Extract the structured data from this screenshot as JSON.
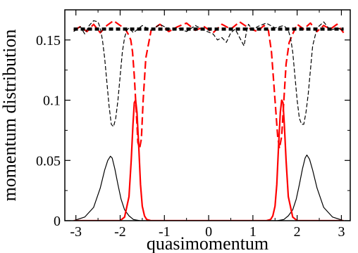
{
  "chart_data": {
    "type": "line",
    "title": "",
    "xlabel": "quasimomentum",
    "ylabel": "momentum distribution",
    "xlim": [
      -3.25,
      3.2
    ],
    "ylim": [
      0,
      0.175
    ],
    "xticks": [
      -3,
      -2,
      -1,
      0,
      1,
      2,
      3
    ],
    "xtick_labels": [
      "-3",
      "-2",
      "-1",
      "0",
      "1",
      "2",
      "3"
    ],
    "yticks": [
      0,
      0.05,
      0.1,
      0.15
    ],
    "ytick_labels": [
      "0",
      "0.05",
      "0.1",
      "0.15"
    ],
    "grid": false,
    "legend": "none",
    "series": [
      {
        "style": "solid",
        "color": "#000000",
        "width": 1.2,
        "x": [
          -3.05,
          -2.8,
          -2.6,
          -2.45,
          -2.35,
          -2.28,
          -2.22,
          -2.18,
          -2.12,
          -2.05,
          -1.98,
          -1.9,
          -1.8,
          -1.7,
          -1.55,
          1.55,
          1.7,
          1.8,
          1.9,
          1.98,
          2.05,
          2.12,
          2.18,
          2.22,
          2.28,
          2.35,
          2.45,
          2.6,
          2.8,
          3.05
        ],
        "y": [
          0.0,
          0.003,
          0.011,
          0.027,
          0.042,
          0.05,
          0.0535,
          0.052,
          0.043,
          0.03,
          0.018,
          0.009,
          0.004,
          0.001,
          0.0,
          0.0,
          0.001,
          0.004,
          0.009,
          0.018,
          0.03,
          0.043,
          0.052,
          0.0545,
          0.051,
          0.042,
          0.027,
          0.011,
          0.003,
          0.0
        ]
      },
      {
        "style": "solid",
        "color": "#ff0000",
        "width": 2.2,
        "x": [
          -3.05,
          -2.0,
          -1.9,
          -1.8,
          -1.75,
          -1.71,
          -1.68,
          -1.65,
          -1.62,
          -1.58,
          -1.54,
          -1.5,
          -1.45,
          -1.4,
          -1.3,
          1.3,
          1.4,
          1.45,
          1.5,
          1.54,
          1.58,
          1.62,
          1.65,
          1.68,
          1.71,
          1.75,
          1.8,
          1.9,
          2.0,
          3.05
        ],
        "y": [
          0.0,
          0.0,
          0.003,
          0.02,
          0.05,
          0.08,
          0.098,
          0.1,
          0.09,
          0.062,
          0.03,
          0.012,
          0.004,
          0.001,
          0.0,
          0.0,
          0.001,
          0.004,
          0.012,
          0.03,
          0.062,
          0.09,
          0.1,
          0.098,
          0.08,
          0.05,
          0.02,
          0.003,
          0.0,
          0.0
        ]
      },
      {
        "style": "dashed",
        "color": "#ff0000",
        "width": 2.2,
        "x": [
          -3.05,
          -2.9,
          -2.75,
          -2.6,
          -2.45,
          -2.3,
          -2.15,
          -2.0,
          -1.9,
          -1.82,
          -1.76,
          -1.72,
          -1.68,
          -1.65,
          -1.62,
          -1.6,
          -1.56,
          -1.52,
          -1.48,
          -1.42,
          -1.3,
          -1.1,
          -0.9,
          -0.7,
          -0.5,
          -0.3,
          -0.1,
          0.1,
          0.3,
          0.5,
          0.7,
          0.9,
          1.1,
          1.25,
          1.35,
          1.42,
          1.48,
          1.52,
          1.56,
          1.6,
          1.65,
          1.7,
          1.75,
          1.82,
          1.9,
          2.0,
          2.15,
          2.3,
          2.45,
          2.6,
          2.75,
          2.9,
          3.05
        ],
        "y": [
          0.158,
          0.161,
          0.157,
          0.163,
          0.156,
          0.162,
          0.166,
          0.162,
          0.16,
          0.155,
          0.15,
          0.14,
          0.12,
          0.1,
          0.08,
          0.065,
          0.06,
          0.068,
          0.1,
          0.135,
          0.158,
          0.163,
          0.157,
          0.161,
          0.164,
          0.158,
          0.161,
          0.156,
          0.163,
          0.159,
          0.165,
          0.16,
          0.157,
          0.162,
          0.158,
          0.14,
          0.11,
          0.09,
          0.07,
          0.06,
          0.07,
          0.1,
          0.13,
          0.148,
          0.155,
          0.163,
          0.159,
          0.164,
          0.157,
          0.162,
          0.159,
          0.163,
          0.156
        ]
      },
      {
        "style": "dashed",
        "color": "#000000",
        "width": 1.2,
        "x": [
          -3.05,
          -2.9,
          -2.8,
          -2.7,
          -2.6,
          -2.5,
          -2.45,
          -2.4,
          -2.35,
          -2.3,
          -2.25,
          -2.2,
          -2.15,
          -2.1,
          -2.05,
          -2.0,
          -1.95,
          -1.9,
          -1.85,
          -1.8,
          -1.7,
          -1.5,
          -1.3,
          -1.1,
          -0.9,
          -0.7,
          -0.5,
          -0.3,
          -0.1,
          0.1,
          0.2,
          0.3,
          0.4,
          0.5,
          0.6,
          0.7,
          0.8,
          0.85,
          0.9,
          1.0,
          1.1,
          1.3,
          1.5,
          1.7,
          1.8,
          1.85,
          1.9,
          1.95,
          2.0,
          2.05,
          2.1,
          2.15,
          2.2,
          2.25,
          2.3,
          2.35,
          2.45,
          2.6,
          2.75,
          2.9,
          3.05
        ],
        "y": [
          0.157,
          0.161,
          0.155,
          0.162,
          0.166,
          0.165,
          0.16,
          0.15,
          0.135,
          0.115,
          0.095,
          0.08,
          0.078,
          0.085,
          0.1,
          0.12,
          0.14,
          0.152,
          0.158,
          0.16,
          0.156,
          0.162,
          0.158,
          0.163,
          0.159,
          0.16,
          0.157,
          0.162,
          0.158,
          0.155,
          0.15,
          0.152,
          0.148,
          0.156,
          0.159,
          0.152,
          0.145,
          0.156,
          0.163,
          0.158,
          0.161,
          0.164,
          0.16,
          0.162,
          0.158,
          0.152,
          0.14,
          0.12,
          0.1,
          0.085,
          0.08,
          0.08,
          0.09,
          0.105,
          0.125,
          0.145,
          0.16,
          0.165,
          0.158,
          0.16,
          0.158
        ]
      },
      {
        "style": "dotted",
        "color": "#000000",
        "width": 4.5,
        "x": [
          -3.05,
          3.05
        ],
        "y": [
          0.159,
          0.159
        ]
      }
    ]
  }
}
